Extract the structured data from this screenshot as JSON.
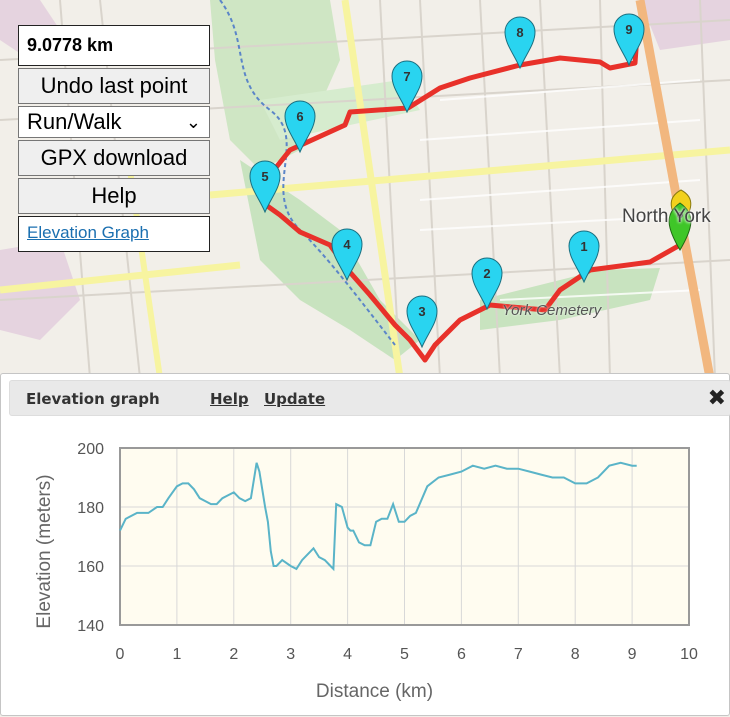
{
  "panel": {
    "distance": "9.0778 km",
    "undo_label": "Undo last point",
    "mode_value": "Run/Walk",
    "gpx_label": "GPX download",
    "help_label": "Help",
    "elevation_link": "Elevation Graph"
  },
  "map": {
    "place_label": "North York",
    "cemetery_label": "York Cemetery",
    "route_color": "#e8312a",
    "marker_color": "#29d4f0",
    "markers": [
      "1",
      "2",
      "3",
      "4",
      "5",
      "6",
      "7",
      "8",
      "9"
    ]
  },
  "dialog": {
    "title": "Elevation graph",
    "help_link": "Help",
    "update_link": "Update",
    "close_icon": "close-icon"
  },
  "chart_data": {
    "type": "line",
    "xlabel": "Distance (km)",
    "ylabel": "Elevation (meters)",
    "xlim": [
      0,
      10
    ],
    "ylim": [
      140,
      200
    ],
    "x_ticks": [
      "0",
      "1",
      "2",
      "3",
      "4",
      "5",
      "6",
      "7",
      "8",
      "9",
      "10"
    ],
    "y_ticks": [
      "140",
      "160",
      "180",
      "200"
    ],
    "grid": true,
    "line_color": "#5ab4c8",
    "series": [
      {
        "x": [
          0,
          0.1,
          0.3,
          0.5,
          0.65,
          0.75,
          0.85,
          1.0,
          1.1,
          1.2,
          1.3,
          1.4,
          1.5,
          1.6,
          1.7,
          1.8,
          1.9,
          2.0,
          2.1,
          2.2,
          2.3,
          2.4,
          2.45,
          2.55,
          2.6,
          2.65,
          2.7,
          2.75,
          2.85,
          3.0,
          3.1,
          3.2,
          3.3,
          3.4,
          3.5,
          3.6,
          3.7,
          3.75,
          3.8,
          3.9,
          4.0,
          4.05,
          4.1,
          4.2,
          4.3,
          4.4,
          4.5,
          4.6,
          4.7,
          4.8,
          4.9,
          5.0,
          5.1,
          5.2,
          5.4,
          5.6,
          5.8,
          6.0,
          6.2,
          6.4,
          6.6,
          6.8,
          7.0,
          7.2,
          7.4,
          7.6,
          7.8,
          8.0,
          8.2,
          8.4,
          8.6,
          8.8,
          9.0,
          9.08
        ],
        "y": [
          172,
          176,
          178,
          178,
          180,
          180,
          183,
          187,
          188,
          188,
          186,
          183,
          182,
          181,
          181,
          183,
          184,
          185,
          183,
          182,
          183,
          195,
          192,
          180,
          175,
          165,
          160,
          160,
          162,
          160,
          159,
          162,
          164,
          166,
          163,
          162,
          160,
          159,
          181,
          180,
          173,
          172,
          172,
          168,
          167,
          167,
          175,
          176,
          176,
          181,
          175,
          175,
          177,
          178,
          187,
          190,
          191,
          192,
          194,
          193,
          194,
          193,
          193,
          192,
          191,
          190,
          190,
          188,
          188,
          190,
          194,
          195,
          194,
          194
        ]
      }
    ]
  }
}
